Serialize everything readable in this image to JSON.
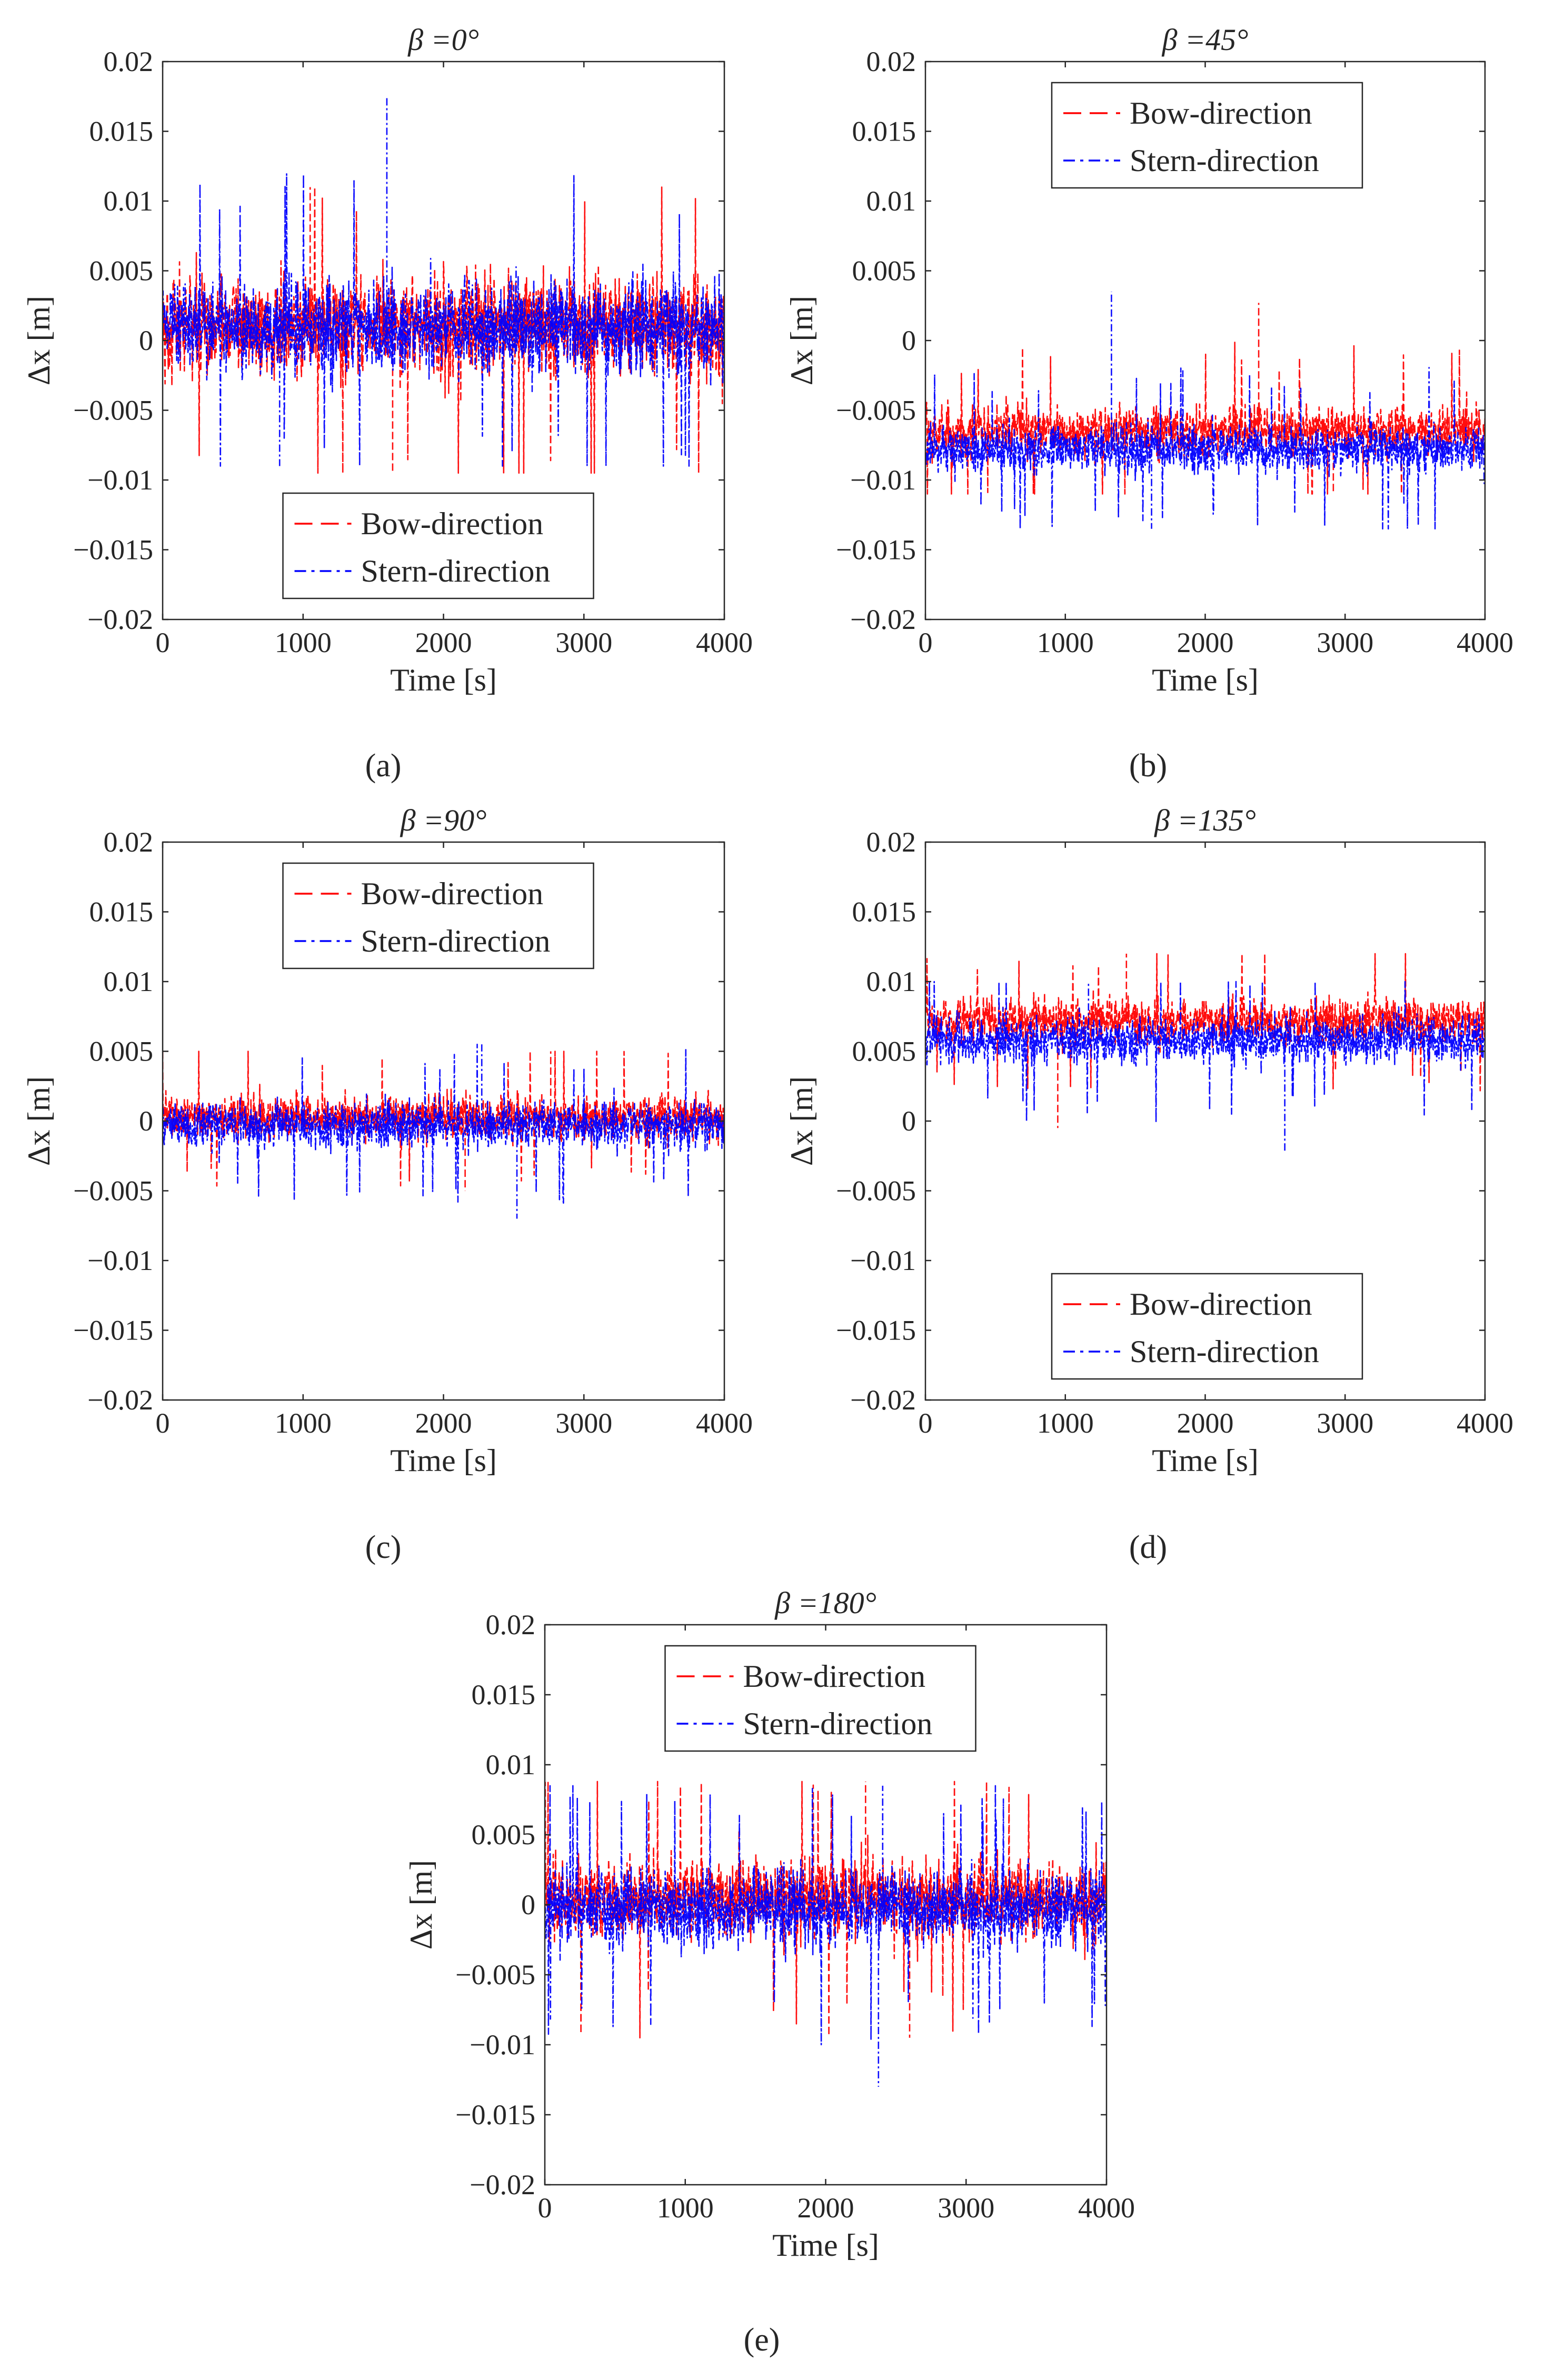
{
  "chart_data": [
    {
      "panel": "(a)",
      "type": "line",
      "title": "β =0°",
      "xlabel": "Time [s]",
      "ylabel": "Δx [m]",
      "xlim": [
        0,
        4000
      ],
      "ylim": [
        -0.02,
        0.02
      ],
      "xticks": [
        0,
        1000,
        2000,
        3000,
        4000
      ],
      "yticks": [
        -0.02,
        -0.015,
        -0.01,
        -0.005,
        0,
        0.005,
        0.01,
        0.015,
        0.02
      ],
      "xtick_labels": [
        "0",
        "1000",
        "2000",
        "3000",
        "4000"
      ],
      "ytick_labels": [
        "−0.02",
        "−0.015",
        "−0.01",
        "−0.005",
        "0",
        "0.005",
        "0.01",
        "0.015",
        "0.02"
      ],
      "legend_position": "bottom-center",
      "series": [
        {
          "name": "Bow-direction",
          "color": "#ff0000",
          "style": "dashed",
          "mean": 0.001,
          "typical_range": [
            -0.006,
            0.009
          ],
          "min": -0.0095,
          "max": 0.011
        },
        {
          "name": "Stern-direction",
          "color": "#0000ff",
          "style": "dashdot",
          "mean": 0.001,
          "typical_range": [
            -0.005,
            0.009
          ],
          "min": -0.009,
          "max": 0.0175
        }
      ]
    },
    {
      "panel": "(b)",
      "type": "line",
      "title": "β =45°",
      "xlabel": "Time [s]",
      "ylabel": "Δx [m]",
      "xlim": [
        0,
        4000
      ],
      "ylim": [
        -0.02,
        0.02
      ],
      "xticks": [
        0,
        1000,
        2000,
        3000,
        4000
      ],
      "yticks": [
        -0.02,
        -0.015,
        -0.01,
        -0.005,
        0,
        0.005,
        0.01,
        0.015,
        0.02
      ],
      "xtick_labels": [
        "0",
        "1000",
        "2000",
        "3000",
        "4000"
      ],
      "ytick_labels": [
        "−0.02",
        "−0.015",
        "−0.01",
        "−0.005",
        "0",
        "0.005",
        "0.01",
        "0.015",
        "0.02"
      ],
      "legend_position": "top-right",
      "series": [
        {
          "name": "Bow-direction",
          "color": "#ff0000",
          "style": "dashed",
          "mean": -0.0065,
          "typical_range": [
            -0.01,
            -0.0025
          ],
          "min": -0.011,
          "max": 0.0027
        },
        {
          "name": "Stern-direction",
          "color": "#0000ff",
          "style": "dashdot",
          "mean": -0.0078,
          "typical_range": [
            -0.0115,
            -0.0045
          ],
          "min": -0.0135,
          "max": 0.0035
        }
      ]
    },
    {
      "panel": "(c)",
      "type": "line",
      "title": "β =90°",
      "xlabel": "Time [s]",
      "ylabel": "Δx [m]",
      "xlim": [
        0,
        4000
      ],
      "ylim": [
        -0.02,
        0.02
      ],
      "xticks": [
        0,
        1000,
        2000,
        3000,
        4000
      ],
      "yticks": [
        -0.02,
        -0.015,
        -0.01,
        -0.005,
        0,
        0.005,
        0.01,
        0.015,
        0.02
      ],
      "xtick_labels": [
        "0",
        "1000",
        "2000",
        "3000",
        "4000"
      ],
      "ytick_labels": [
        "−0.02",
        "−0.015",
        "−0.01",
        "−0.005",
        "0",
        "0.005",
        "0.01",
        "0.015",
        "0.02"
      ],
      "legend_position": "top-center",
      "series": [
        {
          "name": "Bow-direction",
          "color": "#ff0000",
          "style": "dashed",
          "mean": 0.0003,
          "typical_range": [
            -0.003,
            0.0035
          ],
          "min": -0.005,
          "max": 0.005
        },
        {
          "name": "Stern-direction",
          "color": "#0000ff",
          "style": "dashdot",
          "mean": -0.0003,
          "typical_range": [
            -0.004,
            0.003
          ],
          "min": -0.007,
          "max": 0.0055
        }
      ]
    },
    {
      "panel": "(d)",
      "type": "line",
      "title": "β =135°",
      "xlabel": "Time [s]",
      "ylabel": "Δx [m]",
      "xlim": [
        0,
        4000
      ],
      "ylim": [
        -0.02,
        0.02
      ],
      "xticks": [
        0,
        1000,
        2000,
        3000,
        4000
      ],
      "yticks": [
        -0.02,
        -0.015,
        -0.01,
        -0.005,
        0,
        0.005,
        0.01,
        0.015,
        0.02
      ],
      "xtick_labels": [
        "0",
        "1000",
        "2000",
        "3000",
        "4000"
      ],
      "ytick_labels": [
        "−0.02",
        "−0.015",
        "−0.01",
        "−0.005",
        "0",
        "0.005",
        "0.01",
        "0.015",
        "0.02"
      ],
      "legend_position": "bottom-right",
      "series": [
        {
          "name": "Bow-direction",
          "color": "#ff0000",
          "style": "dashed",
          "mean": 0.0072,
          "typical_range": [
            0.004,
            0.0105
          ],
          "min": -0.0005,
          "max": 0.012
        },
        {
          "name": "Stern-direction",
          "color": "#0000ff",
          "style": "dashdot",
          "mean": 0.0058,
          "typical_range": [
            0.002,
            0.009
          ],
          "min": -0.0023,
          "max": 0.01
        }
      ]
    },
    {
      "panel": "(e)",
      "type": "line",
      "title": "β =180°",
      "xlabel": "Time [s]",
      "ylabel": "Δx [m]",
      "xlim": [
        0,
        4000
      ],
      "ylim": [
        -0.02,
        0.02
      ],
      "xticks": [
        0,
        1000,
        2000,
        3000,
        4000
      ],
      "yticks": [
        -0.02,
        -0.015,
        -0.01,
        -0.005,
        0,
        0.005,
        0.01,
        0.015,
        0.02
      ],
      "xtick_labels": [
        "0",
        "1000",
        "2000",
        "3000",
        "4000"
      ],
      "ytick_labels": [
        "−0.02",
        "−0.015",
        "−0.01",
        "−0.005",
        "0",
        "0.005",
        "0.01",
        "0.015",
        "0.02"
      ],
      "legend_position": "top-center",
      "series": [
        {
          "name": "Bow-direction",
          "color": "#ff0000",
          "style": "dashed",
          "mean": 0.0005,
          "typical_range": [
            -0.005,
            0.007
          ],
          "min": -0.0095,
          "max": 0.0088
        },
        {
          "name": "Stern-direction",
          "color": "#0000ff",
          "style": "dashdot",
          "mean": -0.0003,
          "typical_range": [
            -0.006,
            0.0055
          ],
          "min": -0.013,
          "max": 0.0085
        }
      ]
    }
  ]
}
